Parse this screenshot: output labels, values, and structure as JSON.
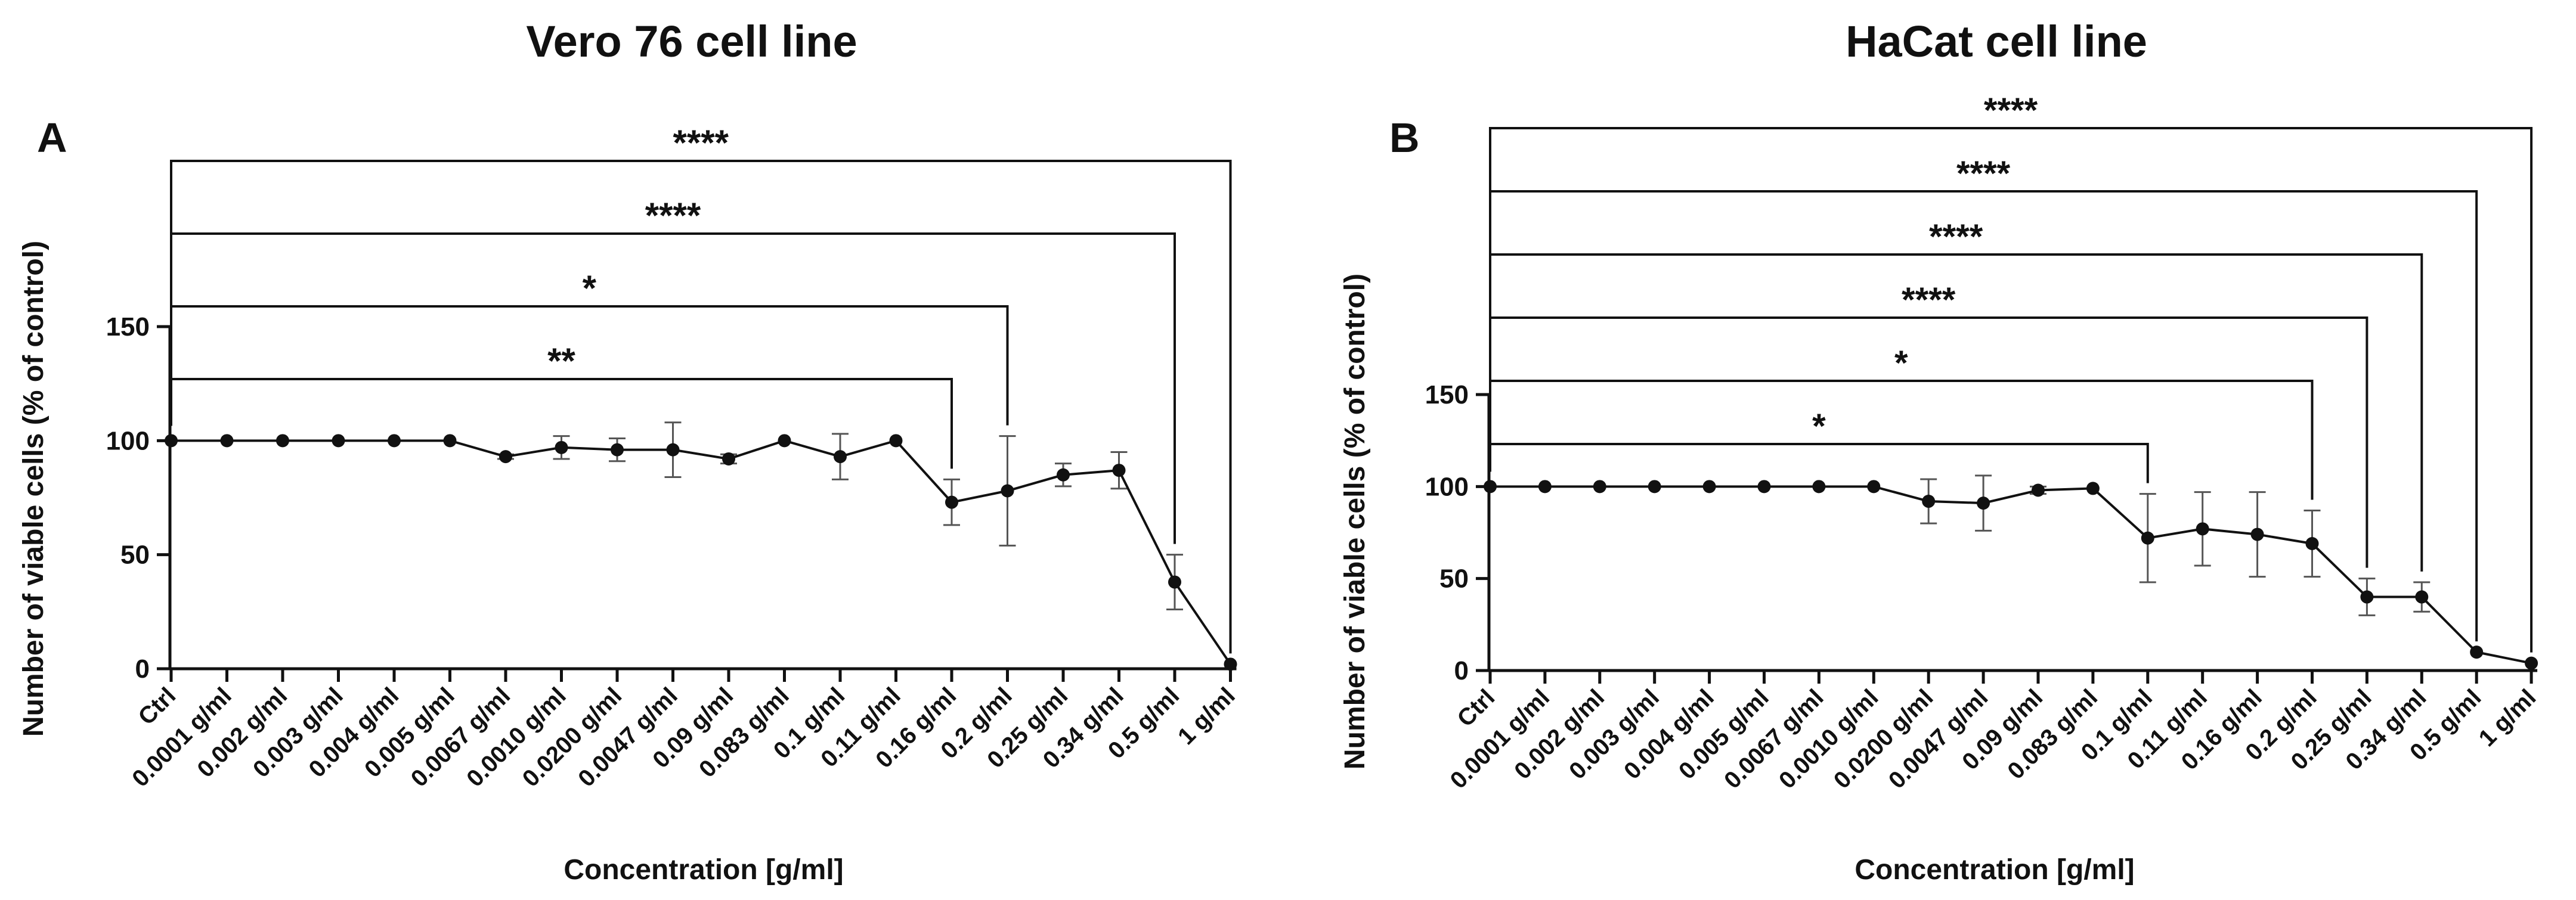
{
  "chart_data": [
    {
      "panel_letter": "A",
      "type": "line",
      "title": "Vero 76 cell line",
      "xlabel": "Concentration   [g/ml]",
      "ylabel": "Number of viable cells (% of control)",
      "ylim": [
        0,
        150
      ],
      "yticks": [
        0,
        50,
        100,
        150
      ],
      "categories": [
        "Ctrl",
        "0.0001 g/ml",
        "0.002 g/ml",
        "0.003 g/ml",
        "0.004 g/ml",
        "0.005 g/ml",
        "0.0067 g/ml",
        "0.0010 g/ml",
        "0.0200 g/ml",
        "0.0047 g/ml",
        "0.09 g/ml",
        "0.083 g/ml",
        "0.1 g/ml",
        "0.11 g/ml",
        "0.16 g/ml",
        "0.2 g/ml",
        "0.25 g/ml",
        "0.34 g/ml",
        "0.5 g/ml",
        "1 g/ml"
      ],
      "values": [
        100,
        100,
        100,
        100,
        100,
        100,
        93,
        97,
        96,
        96,
        92,
        100,
        93,
        100,
        73,
        78,
        85,
        87,
        38,
        2
      ],
      "errors": [
        0,
        0,
        0,
        0,
        0,
        0,
        1,
        5,
        5,
        12,
        2,
        0,
        10,
        0,
        10,
        24,
        5,
        8,
        12,
        0
      ],
      "significance": [
        {
          "from": 0,
          "to": 14,
          "label": "**"
        },
        {
          "from": 0,
          "to": 15,
          "label": "*"
        },
        {
          "from": 0,
          "to": 18,
          "label": "****"
        },
        {
          "from": 0,
          "to": 19,
          "label": "****"
        }
      ]
    },
    {
      "panel_letter": "B",
      "type": "line",
      "title": "HaCat cell line",
      "xlabel": "Concentration   [g/ml]",
      "ylabel": "Number of viable cells (% of control)",
      "ylim": [
        0,
        150
      ],
      "yticks": [
        0,
        50,
        100,
        150
      ],
      "categories": [
        "Ctrl",
        "0.0001 g/ml",
        "0.002 g/ml",
        "0.003 g/ml",
        "0.004 g/ml",
        "0.005 g/ml",
        "0.0067 g/ml",
        "0.0010 g/ml",
        "0.0200 g/ml",
        "0.0047 g/ml",
        "0.09 g/ml",
        "0.083 g/ml",
        "0.1 g/ml",
        "0.11 g/ml",
        "0.16 g/ml",
        "0.2 g/ml",
        "0.25 g/ml",
        "0.34 g/ml",
        "0.5 g/ml",
        "1 g/ml"
      ],
      "values": [
        100,
        100,
        100,
        100,
        100,
        100,
        100,
        100,
        92,
        91,
        98,
        99,
        72,
        77,
        74,
        69,
        40,
        40,
        10,
        4
      ],
      "errors": [
        0,
        0,
        0,
        0,
        0,
        0,
        0,
        0,
        12,
        15,
        2,
        0,
        24,
        20,
        23,
        18,
        10,
        8,
        0,
        0
      ],
      "significance": [
        {
          "from": 0,
          "to": 12,
          "label": "*"
        },
        {
          "from": 0,
          "to": 15,
          "label": "*"
        },
        {
          "from": 0,
          "to": 16,
          "label": "****"
        },
        {
          "from": 0,
          "to": 17,
          "label": "****"
        },
        {
          "from": 0,
          "to": 18,
          "label": "****"
        },
        {
          "from": 0,
          "to": 19,
          "label": "****"
        }
      ]
    }
  ]
}
